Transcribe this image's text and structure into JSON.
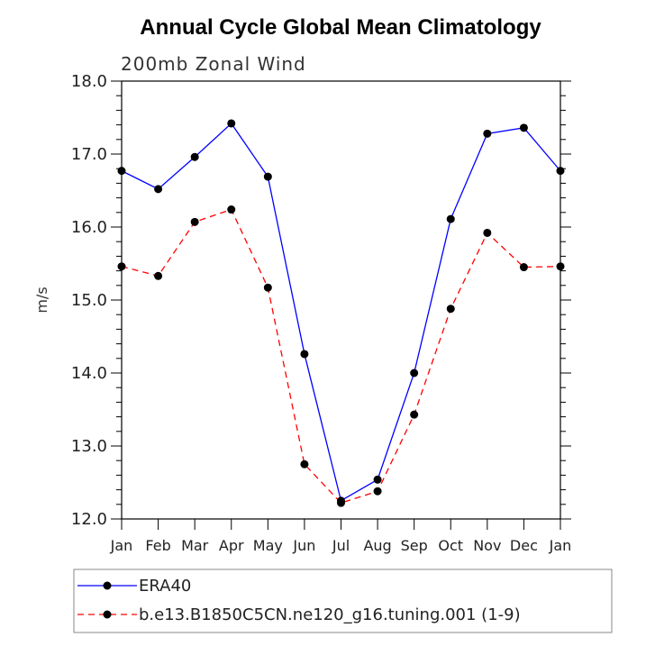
{
  "chart_data": {
    "type": "line",
    "title": "Annual Cycle Global Mean Climatology",
    "subtitle": "200mb Zonal Wind",
    "ylabel": "m/s",
    "xlabel": "",
    "ylim": [
      12.0,
      18.0
    ],
    "yticks": [
      "12.0",
      "13.0",
      "14.0",
      "15.0",
      "16.0",
      "17.0",
      "18.0"
    ],
    "categories": [
      "Jan",
      "Feb",
      "Mar",
      "Apr",
      "May",
      "Jun",
      "Jul",
      "Aug",
      "Sep",
      "Oct",
      "Nov",
      "Dec",
      "Jan"
    ],
    "series": [
      {
        "name": "ERA40",
        "color": "#0000ff",
        "dash": "solid",
        "values": [
          16.77,
          16.52,
          16.96,
          17.42,
          16.69,
          14.26,
          12.25,
          12.54,
          14.0,
          16.11,
          17.28,
          17.36,
          16.77
        ]
      },
      {
        "name": "b.e13.B1850C5CN.ne120_g16.tuning.001 (1-9)",
        "color": "#ff0000",
        "dash": "dashed",
        "values": [
          15.46,
          15.33,
          16.07,
          16.24,
          15.17,
          12.75,
          12.22,
          12.38,
          13.43,
          14.88,
          15.92,
          15.45,
          15.46
        ]
      }
    ],
    "grid": false,
    "legend": "bottom"
  }
}
